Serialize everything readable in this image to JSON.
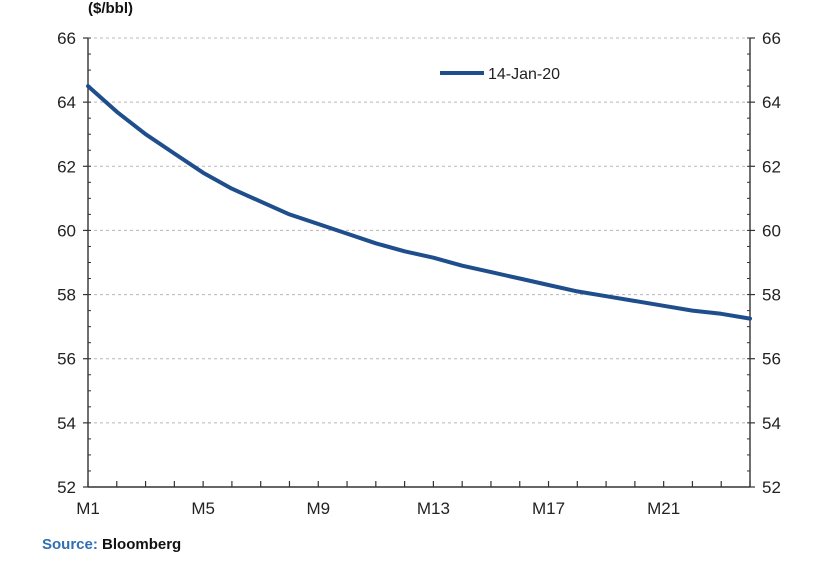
{
  "unit_label": "($/bbl)",
  "source": {
    "label": "Source:",
    "value": "Bloomberg"
  },
  "colors": {
    "series": "#1f4e8c",
    "axis": "#333333",
    "grid": "#b8b8b8",
    "text": "#222222"
  },
  "chart_data": {
    "type": "line",
    "title": "",
    "ylabel": "($/bbl)",
    "ylim": [
      52,
      66
    ],
    "yticks": [
      52,
      54,
      56,
      58,
      60,
      62,
      64,
      66
    ],
    "y_axis_secondary": true,
    "grid": "horizontal dashed",
    "legend": {
      "position": "top-right",
      "entries": [
        "14-Jan-20"
      ]
    },
    "x": [
      "M1",
      "M2",
      "M3",
      "M4",
      "M5",
      "M6",
      "M7",
      "M8",
      "M9",
      "M10",
      "M11",
      "M12",
      "M13",
      "M14",
      "M15",
      "M16",
      "M17",
      "M18",
      "M19",
      "M20",
      "M21",
      "M22",
      "M23",
      "M24"
    ],
    "xtick_labels": [
      "M1",
      "M5",
      "M9",
      "M13",
      "M17",
      "M21"
    ],
    "series": [
      {
        "name": "14-Jan-20",
        "values": [
          64.5,
          63.7,
          63.0,
          62.4,
          61.8,
          61.3,
          60.9,
          60.5,
          60.2,
          59.9,
          59.6,
          59.35,
          59.15,
          58.9,
          58.7,
          58.5,
          58.3,
          58.1,
          57.95,
          57.8,
          57.65,
          57.5,
          57.4,
          57.25
        ]
      }
    ]
  }
}
